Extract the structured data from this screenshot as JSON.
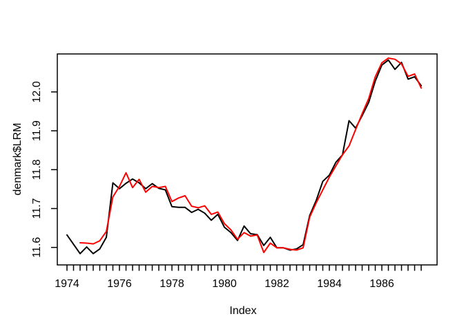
{
  "page": {
    "background": "#ffffff"
  },
  "chart_data": {
    "type": "line",
    "title": "",
    "xlabel": "Index",
    "ylabel": "denmark$LRM",
    "grid": false,
    "legend": "none",
    "x_axis": {
      "start_year": 1974,
      "frequency": 4,
      "total_points": 55,
      "labeled_ticks": [
        1974,
        1976,
        1978,
        1980,
        1982,
        1984,
        1986
      ],
      "minor_tick_every": "quarter"
    },
    "y_axis": {
      "ticks": [
        11.6,
        11.7,
        11.8,
        11.9,
        12.0
      ],
      "range_shown": [
        11.56,
        12.1
      ]
    },
    "series": [
      {
        "name": "black-observed",
        "color": "#000000",
        "start_index": 1,
        "values": [
          11.632,
          11.608,
          11.584,
          11.601,
          11.584,
          11.596,
          11.626,
          11.766,
          11.751,
          11.765,
          11.776,
          11.766,
          11.751,
          11.764,
          11.752,
          11.748,
          11.705,
          11.703,
          11.703,
          11.69,
          11.698,
          11.688,
          11.67,
          11.685,
          11.652,
          11.638,
          11.618,
          11.655,
          11.635,
          11.633,
          11.605,
          11.626,
          11.599,
          11.599,
          11.593,
          11.596,
          11.607,
          11.682,
          11.721,
          11.77,
          11.786,
          11.819,
          11.838,
          11.926,
          11.907,
          11.939,
          11.973,
          12.028,
          12.069,
          12.082,
          12.058,
          12.076,
          12.033,
          12.039,
          12.016
        ]
      },
      {
        "name": "red-fitted",
        "color": "#FF0000",
        "start_index": 3,
        "values": [
          11.612,
          11.611,
          11.609,
          11.617,
          11.641,
          11.73,
          11.757,
          11.792,
          11.754,
          11.775,
          11.742,
          11.757,
          11.754,
          11.757,
          11.718,
          11.727,
          11.733,
          11.706,
          11.702,
          11.707,
          11.685,
          11.691,
          11.661,
          11.645,
          11.621,
          11.638,
          11.629,
          11.632,
          11.587,
          11.611,
          11.599,
          11.599,
          11.595,
          11.593,
          11.599,
          11.678,
          11.715,
          11.748,
          11.781,
          11.81,
          11.838,
          11.861,
          11.903,
          11.944,
          11.983,
          12.039,
          12.075,
          12.087,
          12.084,
          12.072,
          12.04,
          12.046,
          12.01
        ]
      }
    ]
  }
}
